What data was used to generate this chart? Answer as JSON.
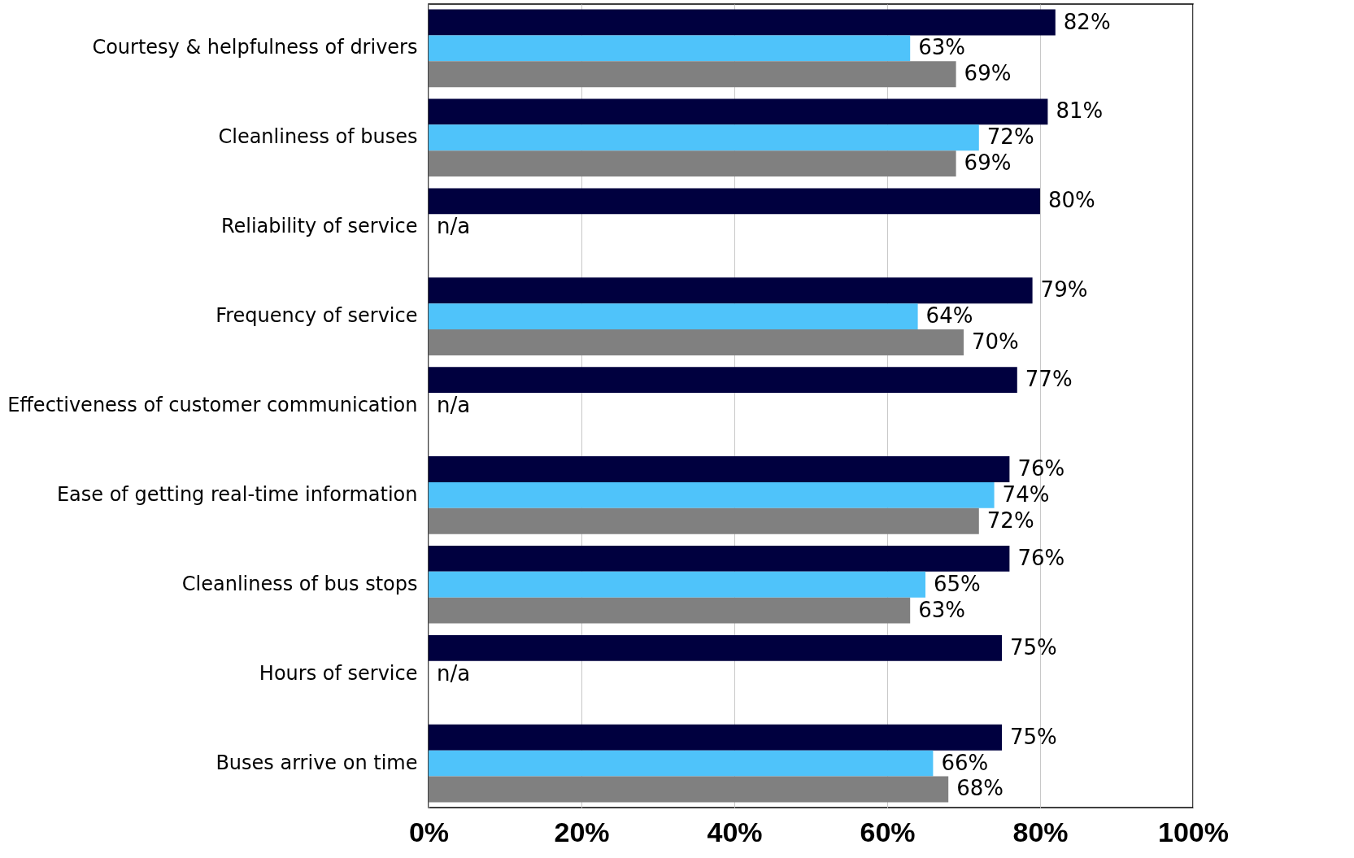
{
  "chart_data": {
    "type": "bar",
    "orientation": "horizontal",
    "categories": [
      "Courtesy & helpfulness of drivers",
      "Cleanliness of buses",
      "Reliability of service",
      "Frequency of service",
      "Effectiveness of customer communication",
      "Ease of getting real-time information",
      "Cleanliness of bus stops",
      "Hours of service",
      "Buses arrive on time"
    ],
    "series": [
      {
        "color": "#00003f",
        "values": [
          82,
          81,
          80,
          79,
          77,
          76,
          76,
          75,
          75
        ],
        "value_labels": [
          "82%",
          "81%",
          "80%",
          "79%",
          "77%",
          "76%",
          "76%",
          "75%",
          "75%"
        ]
      },
      {
        "color": "#4fc3fa",
        "values": [
          63,
          72,
          null,
          64,
          null,
          74,
          65,
          null,
          66
        ],
        "value_labels": [
          "63%",
          "72%",
          "n/a",
          "64%",
          "n/a",
          "74%",
          "65%",
          "n/a",
          "66%"
        ]
      },
      {
        "color": "#808080",
        "values": [
          69,
          69,
          null,
          70,
          null,
          72,
          63,
          null,
          68
        ],
        "value_labels": [
          "69%",
          "69%",
          null,
          "70%",
          null,
          "72%",
          "63%",
          null,
          "68%"
        ]
      }
    ],
    "xlim": [
      0,
      100
    ],
    "xticks": [
      {
        "value": 0,
        "label": "0%"
      },
      {
        "value": 20,
        "label": "20%"
      },
      {
        "value": 40,
        "label": "40%"
      },
      {
        "value": 60,
        "label": "60%"
      },
      {
        "value": 80,
        "label": "80%"
      },
      {
        "value": 100,
        "label": "100%"
      }
    ],
    "grid": "x",
    "legend": false
  }
}
